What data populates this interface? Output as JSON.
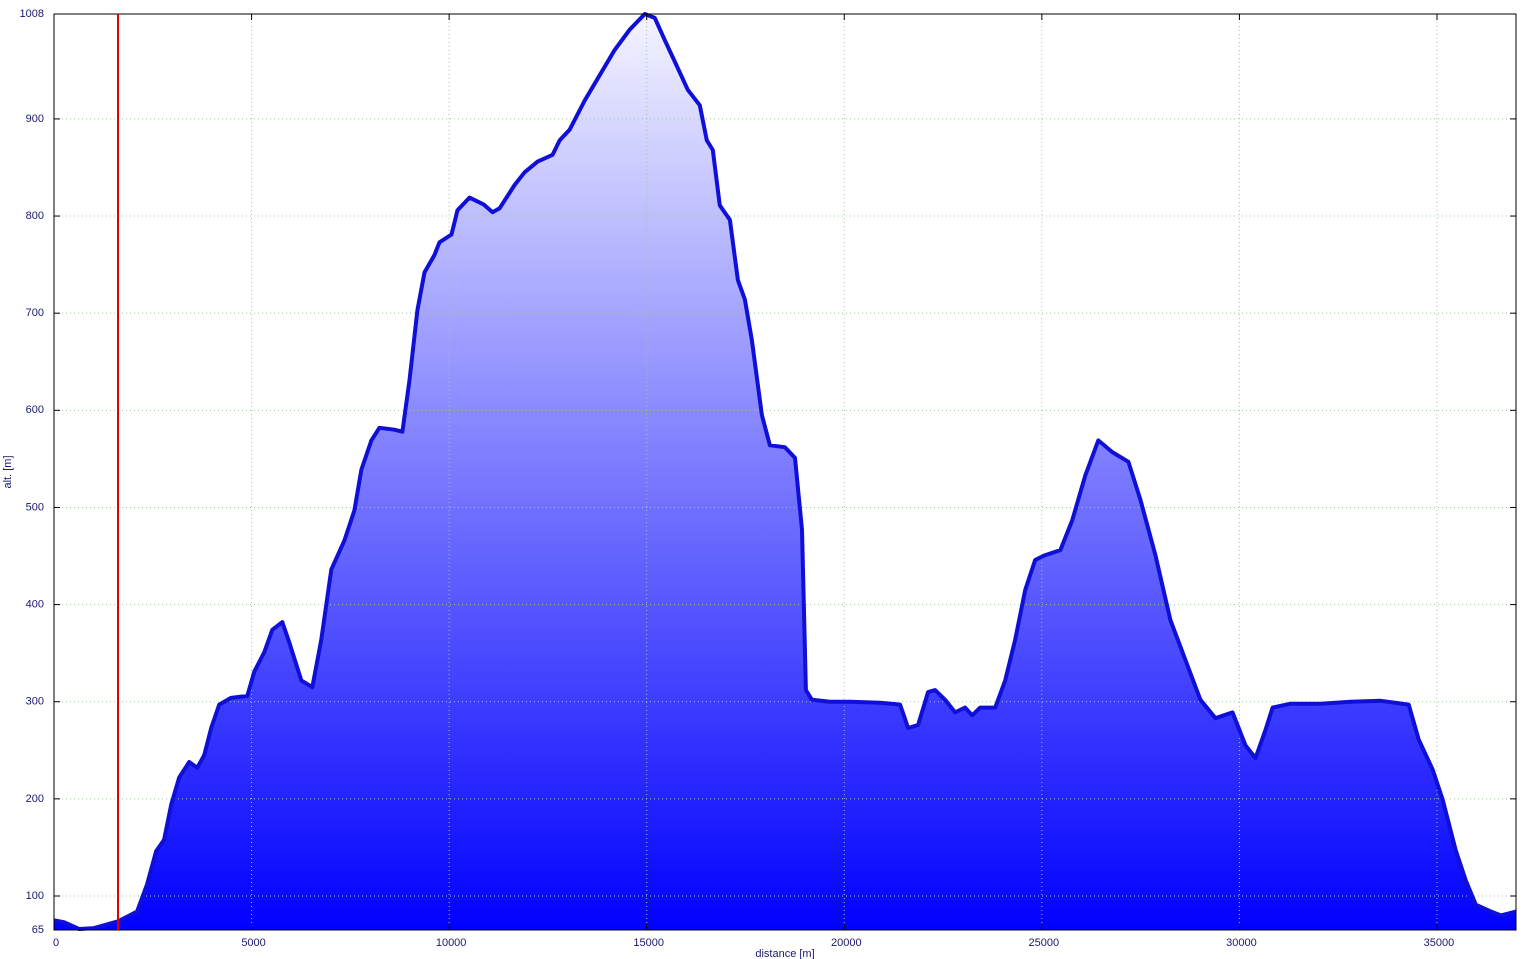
{
  "chart_data": {
    "type": "area",
    "xlabel": "distance [m]",
    "ylabel": "alt. [m]",
    "x": [
      0,
      253,
      634,
      1014,
      1622,
      2103,
      2357,
      2585,
      2787,
      2965,
      3168,
      3421,
      3624,
      3801,
      3978,
      4181,
      4485,
      4891,
      5069,
      5321,
      5524,
      5778,
      5955,
      6259,
      6538,
      6766,
      7019,
      7349,
      7602,
      7779,
      8033,
      8236,
      8616,
      8818,
      8996,
      9198,
      9376,
      9629,
      9756,
      10060,
      10212,
      10516,
      10871,
      11099,
      11276,
      11656,
      11910,
      12239,
      12619,
      12797,
      13050,
      13430,
      13810,
      14190,
      14571,
      14951,
      15204,
      15457,
      15711,
      16040,
      16344,
      16522,
      16674,
      16851,
      17105,
      17307,
      17485,
      17662,
      17916,
      18118,
      18498,
      18752,
      18929,
      19030,
      19182,
      19639,
      20145,
      20906,
      21413,
      21615,
      21868,
      22121,
      22299,
      22553,
      22806,
      23059,
      23237,
      23440,
      23820,
      24073,
      24326,
      24580,
      24833,
      25087,
      25467,
      25771,
      26100,
      26429,
      26784,
      27190,
      27494,
      27874,
      28254,
      28634,
      29014,
      29394,
      29825,
      30155,
      30408,
      30661,
      30839,
      31295,
      32055,
      32815,
      33576,
      34285,
      34538,
      34893,
      35146,
      35475,
      35729,
      35982,
      36362,
      36615,
      37000
    ],
    "values": [
      75,
      73,
      66,
      67,
      74,
      84,
      112,
      146,
      158,
      194,
      222,
      238,
      232,
      245,
      273,
      297,
      304,
      306,
      331,
      351,
      374,
      382,
      361,
      322,
      315,
      364,
      436,
      466,
      497,
      539,
      569,
      582,
      580,
      578,
      631,
      703,
      742,
      760,
      773,
      781,
      806,
      819,
      812,
      804,
      808,
      832,
      845,
      856,
      863,
      878,
      889,
      919,
      945,
      971,
      992,
      1008,
      1004,
      981,
      959,
      930,
      914,
      878,
      868,
      811,
      796,
      734,
      714,
      672,
      595,
      564,
      562,
      551,
      477,
      312,
      302,
      300,
      300,
      299,
      297,
      273,
      276,
      310,
      312,
      302,
      289,
      294,
      286,
      294,
      294,
      322,
      364,
      415,
      446,
      451,
      456,
      487,
      533,
      569,
      557,
      547,
      508,
      451,
      384,
      343,
      302,
      283,
      289,
      255,
      242,
      271,
      294,
      298,
      298,
      300,
      301,
      297,
      261,
      230,
      199,
      147,
      116,
      91,
      84,
      80,
      84
    ],
    "color": "#0f0fd8",
    "fill_top": "#f4f4ff",
    "fill_bottom": "#0000ff",
    "xlim": [
      0,
      37000
    ],
    "ylim": [
      65,
      1008
    ],
    "xticks": [
      0,
      5000,
      10000,
      15000,
      20000,
      25000,
      30000,
      35000
    ],
    "yticks": [
      65,
      100,
      200,
      300,
      400,
      500,
      600,
      700,
      800,
      900,
      1008
    ],
    "grid": true,
    "marker": {
      "x": 1620,
      "color": "#e00000"
    }
  }
}
